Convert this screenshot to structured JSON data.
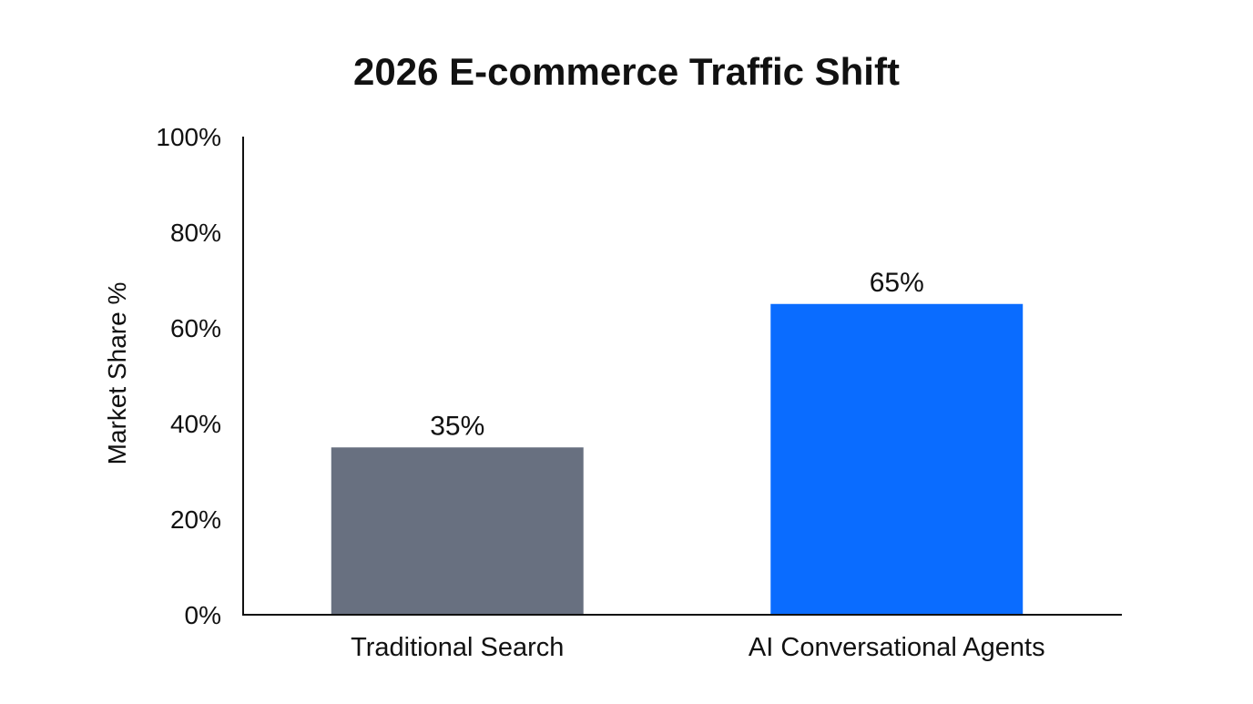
{
  "chart_data": {
    "type": "bar",
    "title": "2026 E-commerce Traffic Shift",
    "xlabel": "",
    "ylabel": "Market Share %",
    "categories": [
      "Traditional Search",
      "AI Conversational Agents"
    ],
    "values": [
      35,
      65
    ],
    "data_labels": [
      "35%",
      "65%"
    ],
    "colors": [
      "#687080",
      "#0a6cff"
    ],
    "ylim": [
      0,
      100
    ],
    "yticks": [
      0,
      20,
      40,
      60,
      80,
      100
    ],
    "ytick_labels": [
      "0%",
      "20%",
      "40%",
      "60%",
      "80%",
      "100%"
    ],
    "grid": false,
    "legend": "none"
  }
}
